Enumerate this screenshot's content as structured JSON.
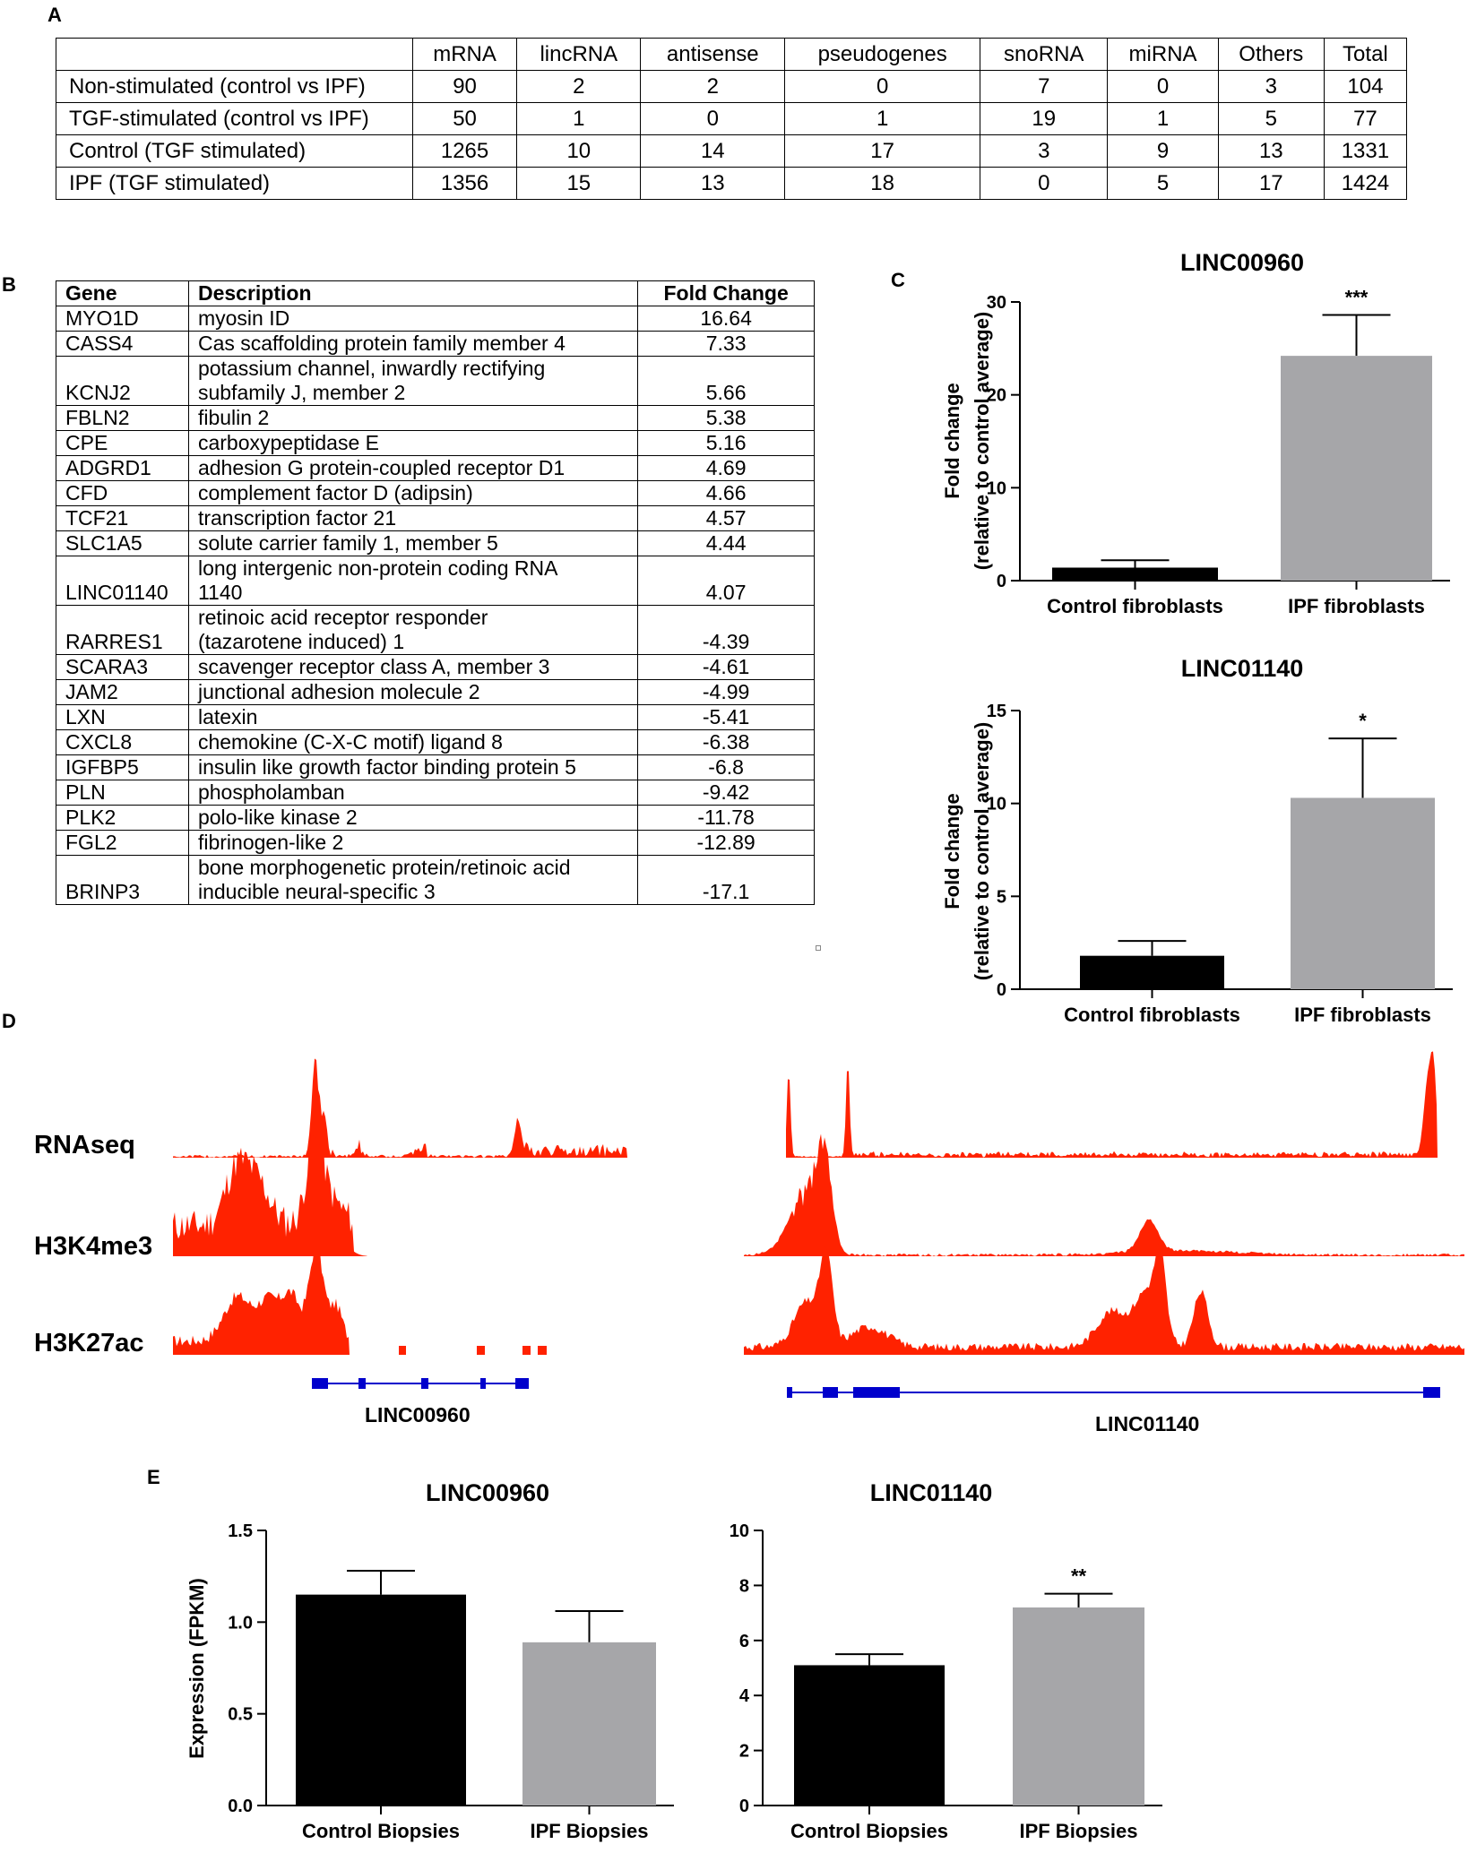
{
  "panels": {
    "a": "A",
    "b": "B",
    "c": "C",
    "d": "D",
    "e": "E"
  },
  "table_a": {
    "columns": [
      "mRNA",
      "lincRNA",
      "antisense",
      "pseudogenes",
      "snoRNA",
      "miRNA",
      "Others",
      "Total"
    ],
    "rows": [
      {
        "label": "Non-stimulated (control vs IPF)",
        "values": [
          "90",
          "2",
          "2",
          "0",
          "7",
          "0",
          "3",
          "104"
        ]
      },
      {
        "label": "TGF-stimulated (control vs IPF)",
        "values": [
          "50",
          "1",
          "0",
          "1",
          "19",
          "1",
          "5",
          "77"
        ]
      },
      {
        "label": "Control (TGF stimulated)",
        "values": [
          "1265",
          "10",
          "14",
          "17",
          "3",
          "9",
          "13",
          "1331"
        ]
      },
      {
        "label": "IPF (TGF stimulated)",
        "values": [
          "1356",
          "15",
          "13",
          "18",
          "0",
          "5",
          "17",
          "1424"
        ]
      }
    ]
  },
  "table_b": {
    "headers": {
      "gene": "Gene",
      "description": "Description",
      "fold_change": "Fold Change"
    },
    "rows": [
      {
        "gene": "MYO1D",
        "desc": [
          "myosin ID"
        ],
        "fc": "16.64"
      },
      {
        "gene": "CASS4",
        "desc": [
          "Cas scaffolding protein family member 4"
        ],
        "fc": "7.33"
      },
      {
        "gene": "KCNJ2",
        "desc": [
          "potassium channel, inwardly rectifying",
          "subfamily J, member 2"
        ],
        "fc": "5.66"
      },
      {
        "gene": "FBLN2",
        "desc": [
          "fibulin 2"
        ],
        "fc": "5.38"
      },
      {
        "gene": "CPE",
        "desc": [
          "carboxypeptidase E"
        ],
        "fc": "5.16"
      },
      {
        "gene": "ADGRD1",
        "desc": [
          "adhesion G protein-coupled receptor D1"
        ],
        "fc": "4.69"
      },
      {
        "gene": "CFD",
        "desc": [
          "complement factor D (adipsin)"
        ],
        "fc": "4.66"
      },
      {
        "gene": "TCF21",
        "desc": [
          "transcription factor 21"
        ],
        "fc": "4.57"
      },
      {
        "gene": "SLC1A5",
        "desc": [
          "solute carrier family 1, member 5"
        ],
        "fc": "4.44"
      },
      {
        "gene": "LINC01140",
        "desc": [
          "long intergenic non-protein coding RNA",
          "1140"
        ],
        "fc": "4.07"
      },
      {
        "gene": "RARRES1",
        "desc": [
          "retinoic acid receptor responder",
          "(tazarotene induced) 1"
        ],
        "fc": "-4.39"
      },
      {
        "gene": "SCARA3",
        "desc": [
          "scavenger receptor class A, member 3"
        ],
        "fc": "-4.61"
      },
      {
        "gene": "JAM2",
        "desc": [
          "junctional adhesion molecule 2"
        ],
        "fc": "-4.99"
      },
      {
        "gene": "LXN",
        "desc": [
          "latexin"
        ],
        "fc": "-5.41"
      },
      {
        "gene": "CXCL8",
        "desc": [
          "chemokine (C-X-C motif) ligand 8"
        ],
        "fc": "-6.38"
      },
      {
        "gene": "IGFBP5",
        "desc": [
          "insulin like growth factor binding protein 5"
        ],
        "fc": "-6.8"
      },
      {
        "gene": "PLN",
        "desc": [
          "phospholamban"
        ],
        "fc": "-9.42"
      },
      {
        "gene": "PLK2",
        "desc": [
          "polo-like kinase 2"
        ],
        "fc": "-11.78"
      },
      {
        "gene": "FGL2",
        "desc": [
          "fibrinogen-like 2"
        ],
        "fc": "-12.89"
      },
      {
        "gene": "BRINP3",
        "desc": [
          "bone morphogenetic protein/retinoic acid",
          "inducible neural-specific 3"
        ],
        "fc": "-17.1"
      }
    ]
  },
  "tracks": {
    "labels": [
      "RNAseq",
      "H3K4me3",
      "H3K27ac"
    ],
    "genes": [
      "LINC00960",
      "LINC01140"
    ],
    "track_color": "#ff2200",
    "gene_color": "#0000cc"
  },
  "chart_data": [
    {
      "type": "bar",
      "title": "LINC00960",
      "ylabel": [
        "Fold change",
        "(relative to control average)"
      ],
      "categories": [
        "Control fibroblasts",
        "IPF fibroblasts"
      ],
      "values": [
        1.4,
        24.2
      ],
      "errors": [
        0.8,
        4.4
      ],
      "colors": [
        "#000000",
        "#a6a6a9"
      ],
      "significance": [
        "",
        "***"
      ],
      "ylim": [
        0,
        30
      ],
      "yticks": [
        0,
        10,
        20,
        30
      ]
    },
    {
      "type": "bar",
      "title": "LINC01140",
      "ylabel": [
        "Fold change",
        "(relative to control average)"
      ],
      "categories": [
        "Control fibroblasts",
        "IPF fibroblasts"
      ],
      "values": [
        1.8,
        10.3
      ],
      "errors": [
        0.8,
        3.2
      ],
      "colors": [
        "#000000",
        "#a6a6a9"
      ],
      "significance": [
        "",
        "*"
      ],
      "ylim": [
        0,
        15
      ],
      "yticks": [
        0,
        5,
        10,
        15
      ]
    },
    {
      "type": "bar",
      "title": "LINC00960",
      "ylabel": [
        "Expression (FPKM)"
      ],
      "categories": [
        "Control Biopsies",
        "IPF Biopsies"
      ],
      "values": [
        1.15,
        0.89
      ],
      "errors": [
        0.13,
        0.17
      ],
      "colors": [
        "#000000",
        "#a6a6a9"
      ],
      "significance": [
        "",
        ""
      ],
      "ylim": [
        0,
        1.5
      ],
      "yticks": [
        "0.0",
        "0.5",
        "1.0",
        "1.5"
      ]
    },
    {
      "type": "bar",
      "title": "LINC01140",
      "ylabel": [],
      "categories": [
        "Control Biopsies",
        "IPF Biopsies"
      ],
      "values": [
        5.1,
        7.2
      ],
      "errors": [
        0.4,
        0.5
      ],
      "colors": [
        "#000000",
        "#a6a6a9"
      ],
      "significance": [
        "",
        "**"
      ],
      "ylim": [
        0,
        10
      ],
      "yticks": [
        0,
        2,
        4,
        6,
        8,
        10
      ]
    }
  ]
}
